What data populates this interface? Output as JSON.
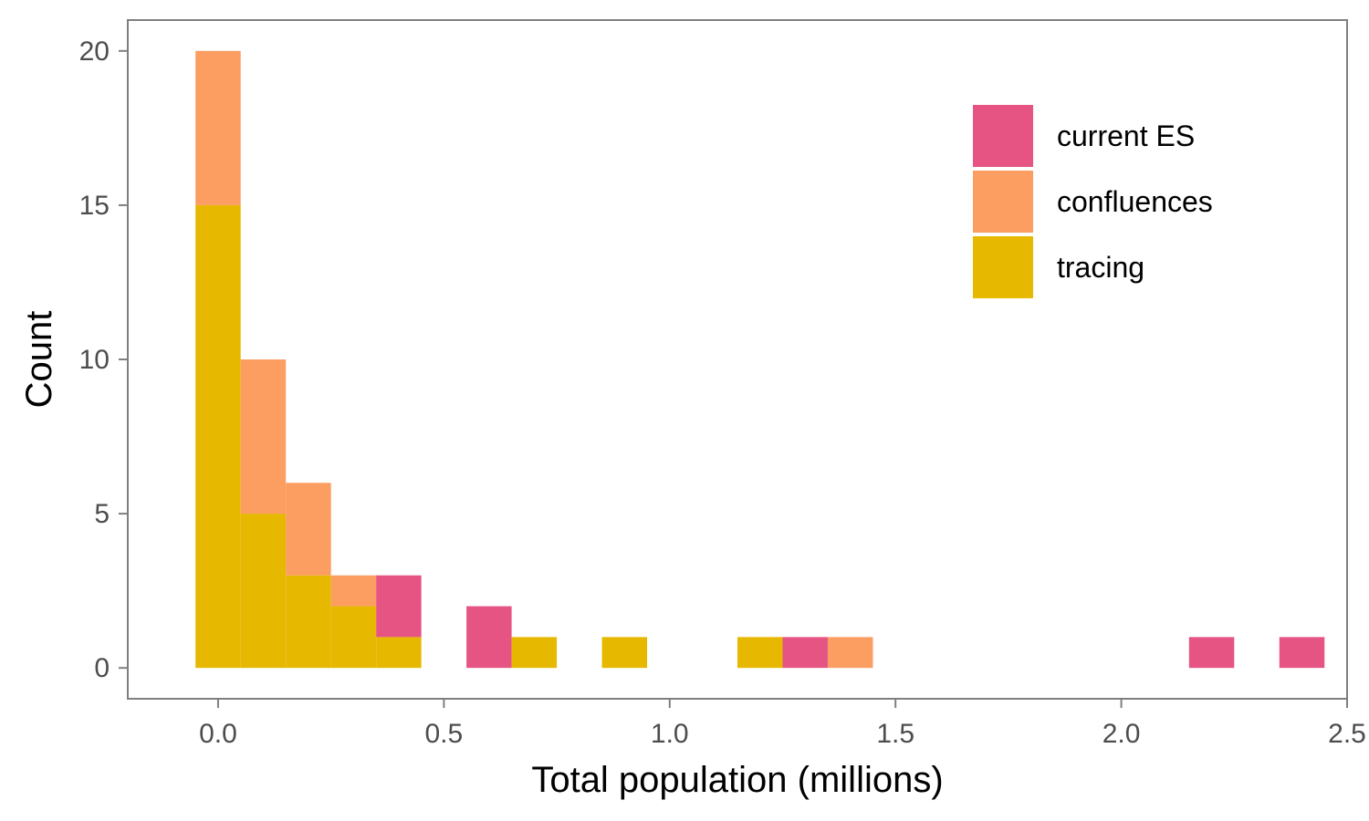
{
  "chart_data": {
    "type": "bar",
    "stacked": true,
    "xlabel": "Total population (millions)",
    "ylabel": "Count",
    "xlim": [
      -0.2,
      2.5
    ],
    "ylim": [
      -1,
      21
    ],
    "x_ticks": [
      {
        "value": 0.0,
        "label": "0.0"
      },
      {
        "value": 0.5,
        "label": "0.5"
      },
      {
        "value": 1.0,
        "label": "1.0"
      },
      {
        "value": 1.5,
        "label": "1.5"
      },
      {
        "value": 2.0,
        "label": "2.0"
      },
      {
        "value": 2.5,
        "label": "2.5"
      }
    ],
    "y_ticks": [
      {
        "value": 0,
        "label": "0"
      },
      {
        "value": 5,
        "label": "5"
      },
      {
        "value": 10,
        "label": "10"
      },
      {
        "value": 15,
        "label": "15"
      },
      {
        "value": 20,
        "label": "20"
      }
    ],
    "bin_width": 0.1,
    "bin_centers": [
      0.0,
      0.1,
      0.2,
      0.3,
      0.4,
      0.6,
      0.7,
      0.9,
      1.2,
      1.3,
      1.4,
      2.2,
      2.4
    ],
    "series": [
      {
        "name": "tracing",
        "color": "#E6B800",
        "values": [
          15,
          5,
          3,
          2,
          1,
          0,
          1,
          1,
          1,
          0,
          0,
          0,
          0
        ]
      },
      {
        "name": "confluences",
        "color": "#FC9D62",
        "values": [
          5,
          5,
          3,
          1,
          0,
          0,
          0,
          0,
          0,
          0,
          1,
          0,
          0
        ]
      },
      {
        "name": "current ES",
        "color": "#E55482",
        "values": [
          0,
          0,
          0,
          0,
          2,
          2,
          0,
          0,
          0,
          1,
          0,
          1,
          1
        ]
      }
    ],
    "legend": {
      "position": "top-right",
      "entries": [
        {
          "label": "current ES",
          "color": "#E55482"
        },
        {
          "label": "confluences",
          "color": "#FC9D62"
        },
        {
          "label": "tracing",
          "color": "#E6B800"
        }
      ]
    },
    "grid": false
  }
}
